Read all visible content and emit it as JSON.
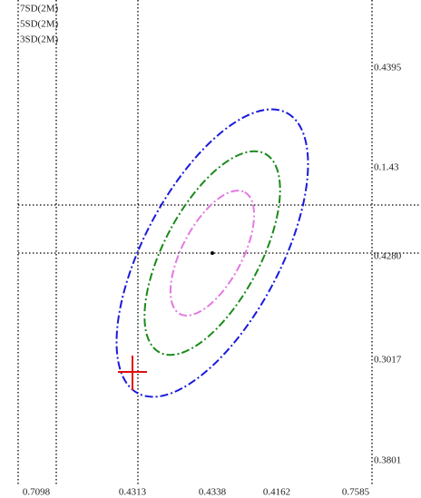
{
  "legend": [
    {
      "label": "7SD(2M)",
      "color": "#1a1adc"
    },
    {
      "label": "5SD(2M)",
      "color": "#1a8a1a"
    },
    {
      "label": "3SD(2M)",
      "color": "#e27ae2"
    }
  ],
  "x_tick_labels": [
    "0.7098",
    "0.4313",
    "0.4338",
    "0.4162",
    "0.7585"
  ],
  "y_tick_labels": [
    "0.4395",
    "0.1.43",
    "0.4280",
    "0.3017",
    "0.3801"
  ]
}
